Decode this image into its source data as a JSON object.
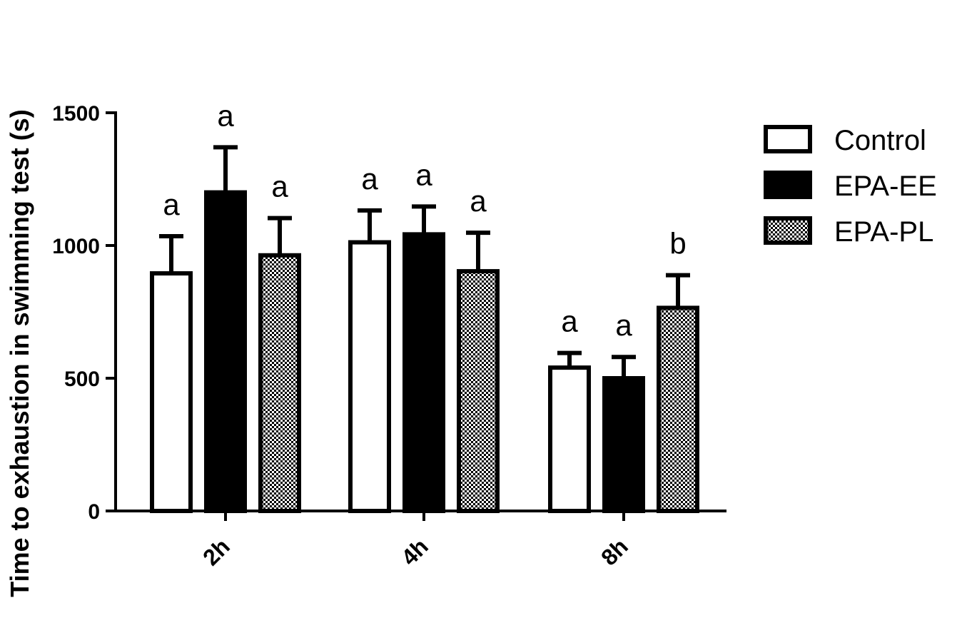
{
  "chart_data": {
    "type": "bar",
    "ylabel": "Time to exhaustion in swimming test (s)",
    "xlabel": "",
    "ylim": [
      0,
      1500
    ],
    "yticks": [
      0,
      500,
      1000,
      1500
    ],
    "categories": [
      "2h",
      "4h",
      "8h"
    ],
    "series": [
      {
        "name": "Control",
        "fill": "white",
        "values": [
          895,
          1012,
          540
        ],
        "errors": [
          140,
          120,
          55
        ],
        "labels": [
          "a",
          "a",
          "a"
        ]
      },
      {
        "name": "EPA-EE",
        "fill": "black",
        "values": [
          1200,
          1042,
          500
        ],
        "errors": [
          170,
          105,
          80
        ],
        "labels": [
          "a",
          "a",
          "a"
        ]
      },
      {
        "name": "EPA-PL",
        "fill": "checker",
        "values": [
          963,
          903,
          765
        ],
        "errors": [
          140,
          145,
          123
        ],
        "labels": [
          "a",
          "a",
          "b"
        ]
      }
    ],
    "legend_position": "right",
    "grid": false
  },
  "colors": {
    "axis": "#000000",
    "black_fill": "#000000",
    "white_fill": "#ffffff"
  }
}
